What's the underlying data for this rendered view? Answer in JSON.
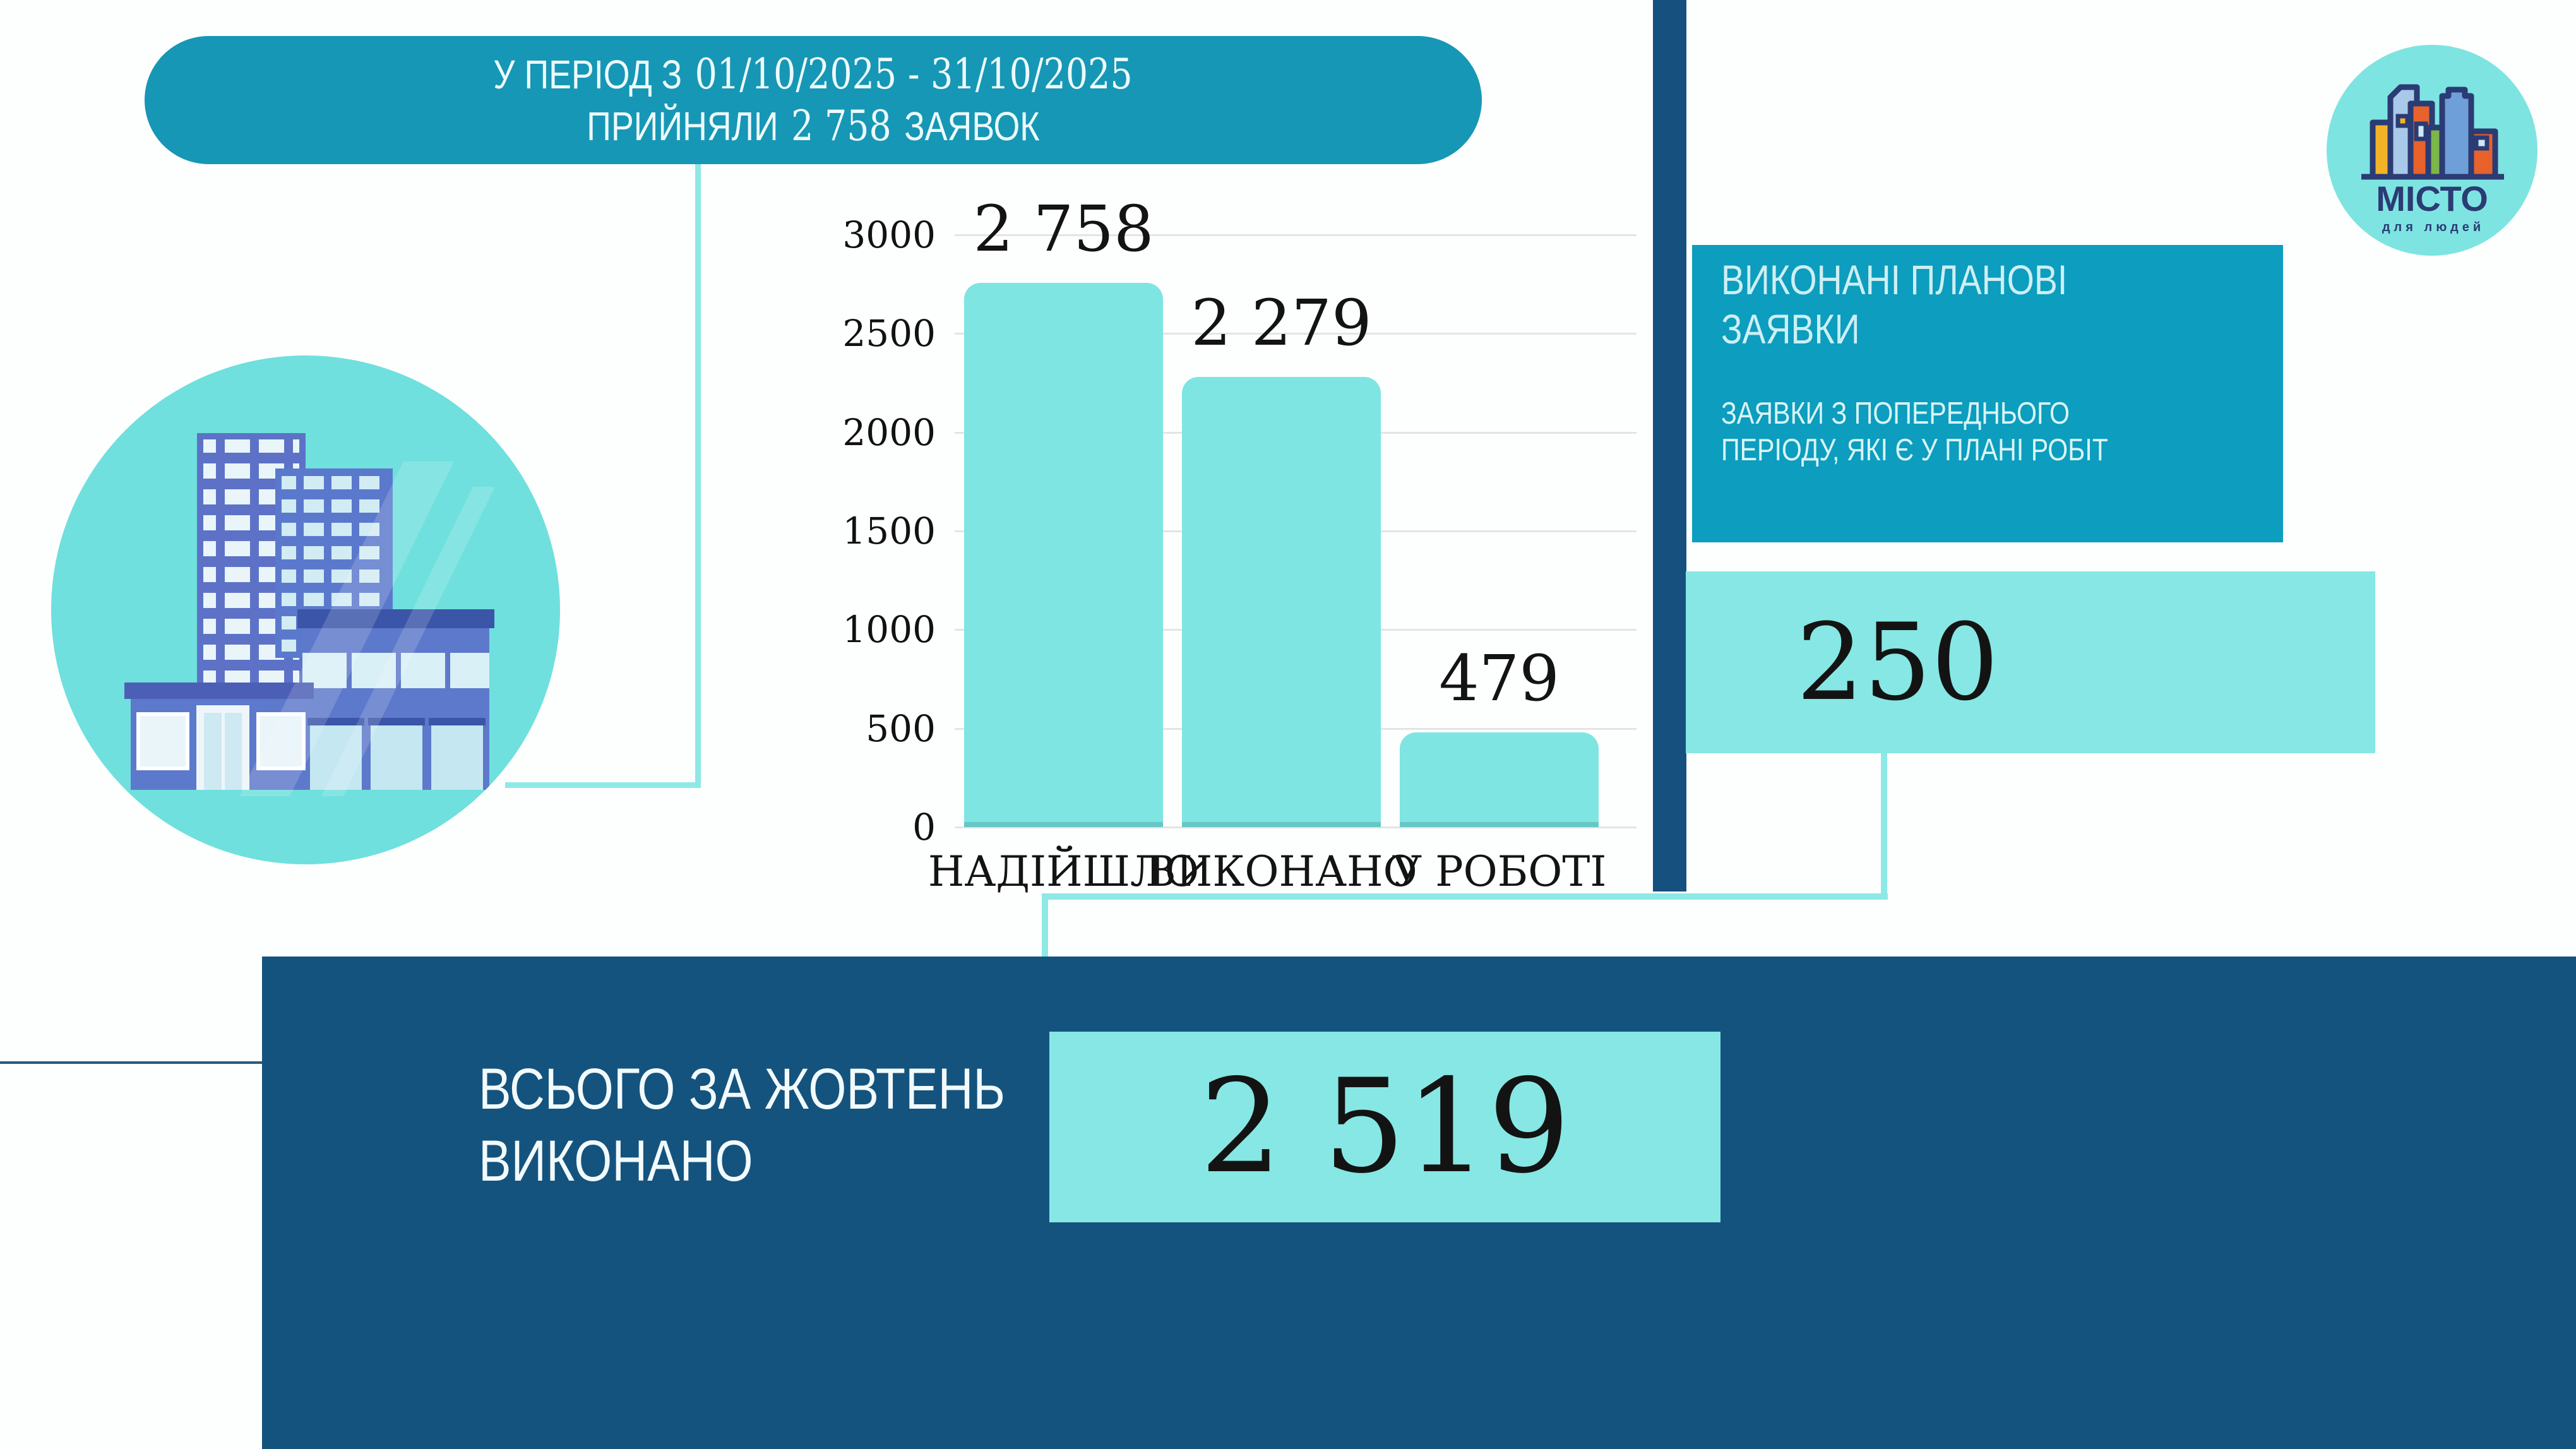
{
  "colors": {
    "teal_banner": "#1697b6",
    "teal_panel": "#0c9dbf",
    "light_teal_box": "#86e7e4",
    "bar_teal": "#7ee5e2",
    "circle_teal": "#6fe0dd",
    "connector_teal": "#8ee9e6",
    "dark_blue": "#14537e",
    "accent_stripe_blue": "#16507e",
    "logo_navy": "#2b3b74",
    "text_dark": "#131313",
    "text_light": "#eefafb"
  },
  "banner": {
    "line1_prefix": "У ПЕРІОД З",
    "line1_dates": "01/10/2025 - 31/10/2025",
    "line2_prefix": "ПРИЙНЯЛИ",
    "line2_number": "2 758",
    "line2_suffix": "ЗАЯВОК"
  },
  "logo": {
    "name": "МІСТО",
    "tagline": "для людей"
  },
  "planned_panel": {
    "title_line1": "ВИКОНАНІ ПЛАНОВІ",
    "title_line2": "ЗАЯВКИ",
    "subtitle_line1": "ЗАЯВКИ З ПОПЕРЕДНЬОГО",
    "subtitle_line2": "ПЕРІОДУ, ЯКІ Є У ПЛАНІ РОБІТ",
    "value": "250"
  },
  "total_panel": {
    "label_line1": "ВСЬОГО ЗА ЖОВТЕНЬ",
    "label_line2": "ВИКОНАНО",
    "value": "2 519"
  },
  "chart_data": {
    "type": "bar",
    "categories": [
      "НАДІЙШЛО",
      "ВИКОНАНО",
      "У РОБОТІ"
    ],
    "values": [
      2758,
      2279,
      479
    ],
    "value_labels": [
      "2 758",
      "2 279",
      "479"
    ],
    "title": "",
    "xlabel": "",
    "ylabel": "",
    "ylim": [
      0,
      3000
    ],
    "ytick_step": 500,
    "grid": true,
    "legend": false,
    "bar_color": "#7ee5e2"
  }
}
